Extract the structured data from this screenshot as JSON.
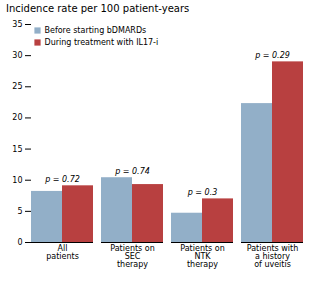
{
  "chart_data": {
    "type": "bar",
    "title": "Incidence rate per 100 patient-years",
    "categories": [
      "All\npatients",
      "Patients on\nSEC\ntherapy",
      "Patients on\nNTK\ntherapy",
      "Patients with\na history\nof uveitis"
    ],
    "series": [
      {
        "name": "Before starting bDMARDs",
        "color": "#92afc8",
        "values": [
          8.2,
          10.4,
          4.7,
          22.3
        ]
      },
      {
        "name": "During treatment with IL17-i",
        "color": "#b84040",
        "values": [
          9.1,
          9.3,
          7.0,
          29.0
        ]
      }
    ],
    "annotations": [
      "p = 0.72",
      "p = 0.74",
      "p = 0.3",
      "p = 0.29"
    ],
    "ylim": [
      0,
      35
    ],
    "yticks": [
      0,
      5,
      10,
      15,
      20,
      25,
      30,
      35
    ],
    "grid": false,
    "legend": "upper left"
  }
}
